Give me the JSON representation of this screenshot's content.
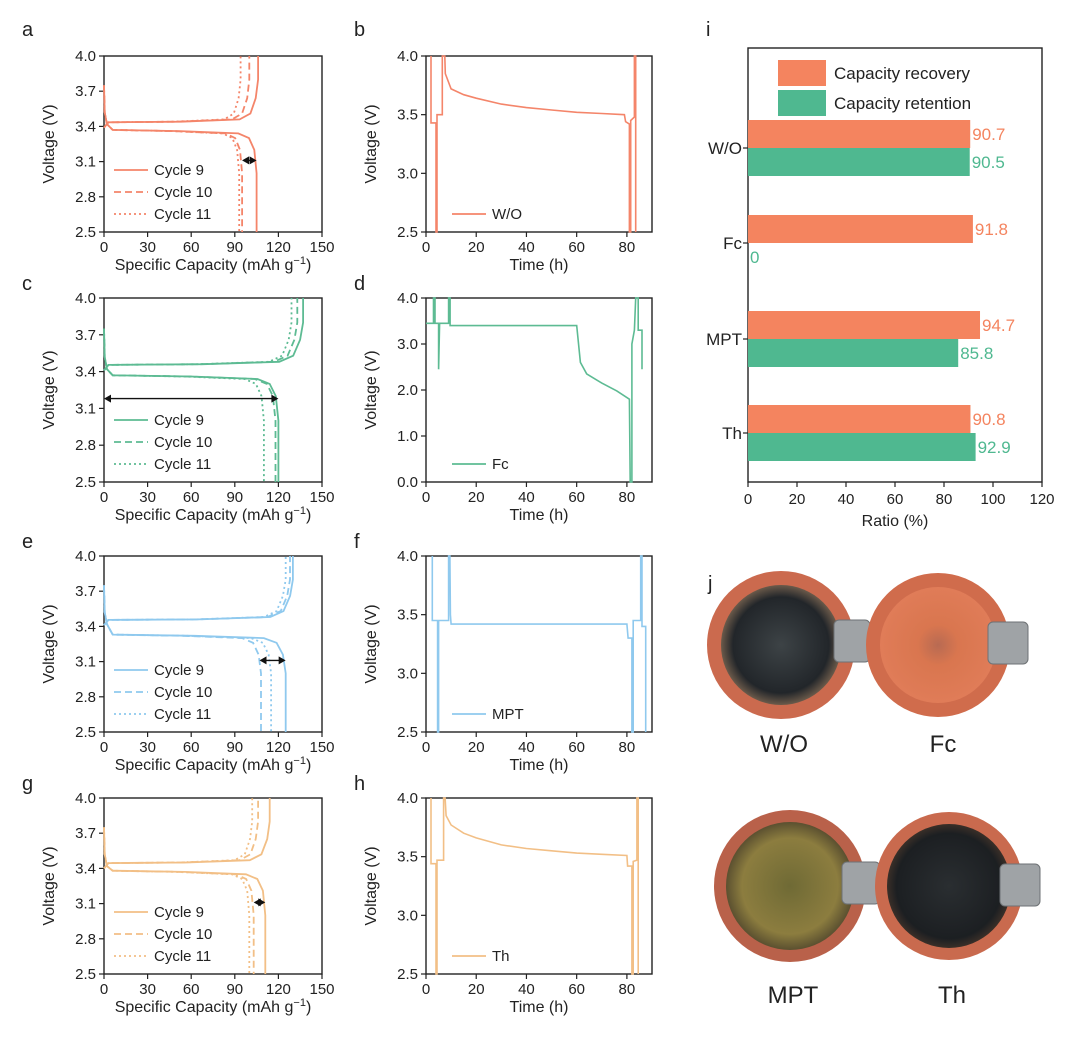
{
  "colors": {
    "WO": "#F4856A",
    "Fc": "#5DBB93",
    "MPT": "#8FC9EE",
    "Th": "#F2BF86",
    "recovery": "#F4845F",
    "retention": "#4FB890",
    "pellet_dark": "#26292c",
    "pellet_ring": "#c9664a",
    "pellet_fc": "#d9734f",
    "pellet_mpt": "#8a7a3c",
    "pellet_rim_bg": "#cc6b4e"
  },
  "panel_labels": {
    "a": "a",
    "b": "b",
    "c": "c",
    "d": "d",
    "e": "e",
    "f": "f",
    "g": "g",
    "h": "h",
    "i": "i",
    "j": "j"
  },
  "chart_data": [
    {
      "panel": "a",
      "type": "line",
      "xlabel": "Specific Capacity (mAh g",
      "xlabel_sup": "−1",
      "xlabel_end": ")",
      "ylabel": "Voltage (V)",
      "xlim": [
        0,
        150
      ],
      "ylim": [
        2.5,
        4.0
      ],
      "xticks": [
        0,
        30,
        60,
        90,
        120,
        150
      ],
      "yticks": [
        2.5,
        2.8,
        3.1,
        3.4,
        3.7,
        4.0
      ],
      "color": "#F4856A",
      "legend": [
        "Cycle 9",
        "Cycle 10",
        "Cycle 11"
      ],
      "series": [
        {
          "name": "Cycle 9",
          "style": "solid",
          "charge_plateau": 3.44,
          "discharge_plateau": 3.36,
          "charge_cap": 106,
          "discharge_cap": 105
        },
        {
          "name": "Cycle 10",
          "style": "dash",
          "charge_plateau": 3.44,
          "discharge_plateau": 3.36,
          "charge_cap": 100,
          "discharge_cap": 95
        },
        {
          "name": "Cycle 11",
          "style": "dot",
          "charge_plateau": 3.44,
          "discharge_plateau": 3.36,
          "charge_cap": 94,
          "discharge_cap": 93
        }
      ],
      "arrow": {
        "x1": 95,
        "x2": 105,
        "y": 3.11
      }
    },
    {
      "panel": "b",
      "type": "line",
      "xlabel": "Time (h)",
      "ylabel": "Voltage (V)",
      "xlim": [
        0,
        90
      ],
      "ylim": [
        2.5,
        4.0
      ],
      "xticks": [
        0,
        20,
        40,
        60,
        80
      ],
      "yticks": [
        2.5,
        3.0,
        3.5,
        4.0
      ],
      "color": "#F4856A",
      "legend": [
        "W/O"
      ],
      "points": [
        [
          2,
          4.0
        ],
        [
          2,
          3.43
        ],
        [
          4,
          3.43
        ],
        [
          4,
          2.5
        ],
        [
          4.4,
          2.5
        ],
        [
          4.4,
          3.5
        ],
        [
          6.5,
          3.5
        ],
        [
          6.5,
          4.0
        ],
        [
          7.5,
          4.0
        ],
        [
          7.7,
          3.85
        ],
        [
          10,
          3.72
        ],
        [
          15,
          3.67
        ],
        [
          20,
          3.64
        ],
        [
          30,
          3.59
        ],
        [
          40,
          3.56
        ],
        [
          50,
          3.54
        ],
        [
          60,
          3.52
        ],
        [
          70,
          3.51
        ],
        [
          79,
          3.5
        ],
        [
          79.5,
          3.44
        ],
        [
          81,
          3.42
        ],
        [
          81,
          2.5
        ],
        [
          81.5,
          2.5
        ],
        [
          81.5,
          3.45
        ],
        [
          83,
          3.48
        ],
        [
          83,
          4.0
        ],
        [
          83.5,
          4.0
        ],
        [
          83.5,
          2.5
        ]
      ]
    },
    {
      "panel": "c",
      "type": "line",
      "xlabel": "Specific Capacity (mAh g",
      "xlabel_sup": "−1",
      "xlabel_end": ")",
      "ylabel": "Voltage (V)",
      "xlim": [
        0,
        150
      ],
      "ylim": [
        2.5,
        4.0
      ],
      "xticks": [
        0,
        30,
        60,
        90,
        120,
        150
      ],
      "yticks": [
        2.5,
        2.8,
        3.1,
        3.4,
        3.7,
        4.0
      ],
      "color": "#5DBB93",
      "legend": [
        "Cycle 9",
        "Cycle 10",
        "Cycle 11"
      ],
      "series": [
        {
          "name": "Cycle 9",
          "style": "solid",
          "charge_plateau": 3.46,
          "discharge_plateau": 3.36,
          "charge_cap": 137,
          "discharge_cap": 120
        },
        {
          "name": "Cycle 10",
          "style": "dash",
          "charge_plateau": 3.46,
          "discharge_plateau": 3.36,
          "charge_cap": 133,
          "discharge_cap": 118
        },
        {
          "name": "Cycle 11",
          "style": "dot",
          "charge_plateau": 3.46,
          "discharge_plateau": 3.36,
          "charge_cap": 129,
          "discharge_cap": 110
        }
      ],
      "arrow": {
        "x1": 0,
        "x2": 120,
        "y": 3.18
      }
    },
    {
      "panel": "d",
      "type": "line",
      "xlabel": "Time (h)",
      "ylabel": "Voltage (V)",
      "xlim": [
        0,
        90
      ],
      "ylim": [
        0.0,
        4.0
      ],
      "xticks": [
        0,
        20,
        40,
        60,
        80
      ],
      "yticks": [
        0.0,
        1.0,
        2.0,
        3.0,
        4.0
      ],
      "color": "#5DBB93",
      "legend": [
        "Fc"
      ],
      "points": [
        [
          0,
          3.45
        ],
        [
          3,
          3.45
        ],
        [
          3,
          4.0
        ],
        [
          3.6,
          4.0
        ],
        [
          3.6,
          3.45
        ],
        [
          5,
          3.45
        ],
        [
          5,
          2.45
        ],
        [
          5.4,
          3.45
        ],
        [
          9,
          3.45
        ],
        [
          9,
          4.0
        ],
        [
          9.6,
          4.0
        ],
        [
          9.6,
          3.4
        ],
        [
          20,
          3.4
        ],
        [
          40,
          3.4
        ],
        [
          60,
          3.4
        ],
        [
          61.5,
          2.6
        ],
        [
          64,
          2.35
        ],
        [
          70,
          2.15
        ],
        [
          76,
          1.98
        ],
        [
          81,
          1.8
        ],
        [
          81.3,
          0.0
        ],
        [
          82,
          0.0
        ],
        [
          82,
          3.0
        ],
        [
          83,
          3.3
        ],
        [
          83.5,
          4.0
        ],
        [
          84.5,
          4.0
        ],
        [
          84.5,
          3.3
        ],
        [
          86,
          3.3
        ],
        [
          86,
          2.45
        ]
      ]
    },
    {
      "panel": "e",
      "type": "line",
      "xlabel": "Specific Capacity (mAh g",
      "xlabel_sup": "−1",
      "xlabel_end": ")",
      "ylabel": "Voltage (V)",
      "xlim": [
        0,
        150
      ],
      "ylim": [
        2.5,
        4.0
      ],
      "xticks": [
        0,
        30,
        60,
        90,
        120,
        150
      ],
      "yticks": [
        2.5,
        2.8,
        3.1,
        3.4,
        3.7,
        4.0
      ],
      "color": "#8FC9EE",
      "legend": [
        "Cycle 9",
        "Cycle 10",
        "Cycle 11"
      ],
      "series": [
        {
          "name": "Cycle 9",
          "style": "solid",
          "charge_plateau": 3.46,
          "discharge_plateau": 3.32,
          "charge_cap": 130,
          "discharge_cap": 125
        },
        {
          "name": "Cycle 10",
          "style": "dash",
          "charge_plateau": 3.46,
          "discharge_plateau": 3.32,
          "charge_cap": 128,
          "discharge_cap": 108
        },
        {
          "name": "Cycle 11",
          "style": "dot",
          "charge_plateau": 3.46,
          "discharge_plateau": 3.32,
          "charge_cap": 125,
          "discharge_cap": 115
        }
      ],
      "arrow": {
        "x1": 107,
        "x2": 125,
        "y": 3.11
      }
    },
    {
      "panel": "f",
      "type": "line",
      "xlabel": "Time (h)",
      "ylabel": "Voltage (V)",
      "xlim": [
        0,
        90
      ],
      "ylim": [
        2.5,
        4.0
      ],
      "xticks": [
        0,
        20,
        40,
        60,
        80
      ],
      "yticks": [
        2.5,
        3.0,
        3.5,
        4.0
      ],
      "color": "#8FC9EE",
      "legend": [
        "MPT"
      ],
      "points": [
        [
          2.5,
          4.0
        ],
        [
          2.5,
          3.45
        ],
        [
          4.6,
          3.45
        ],
        [
          4.6,
          2.5
        ],
        [
          5,
          2.5
        ],
        [
          5,
          3.45
        ],
        [
          9,
          3.45
        ],
        [
          9,
          4.0
        ],
        [
          9.5,
          4.0
        ],
        [
          9.7,
          3.5
        ],
        [
          10,
          3.42
        ],
        [
          20,
          3.42
        ],
        [
          40,
          3.42
        ],
        [
          60,
          3.42
        ],
        [
          80,
          3.42
        ],
        [
          80.5,
          3.3
        ],
        [
          82,
          3.3
        ],
        [
          82,
          2.5
        ],
        [
          82.5,
          2.5
        ],
        [
          82.5,
          3.45
        ],
        [
          85.5,
          3.45
        ],
        [
          85.5,
          4.0
        ],
        [
          86,
          4.0
        ],
        [
          86,
          3.4
        ],
        [
          87.5,
          3.4
        ],
        [
          87.5,
          2.5
        ]
      ]
    },
    {
      "panel": "g",
      "type": "line",
      "xlabel": "Specific Capacity (mAh g",
      "xlabel_sup": "−1",
      "xlabel_end": ")",
      "ylabel": "Voltage (V)",
      "xlim": [
        0,
        150
      ],
      "ylim": [
        2.5,
        4.0
      ],
      "xticks": [
        0,
        30,
        60,
        90,
        120,
        150
      ],
      "yticks": [
        2.5,
        2.8,
        3.1,
        3.4,
        3.7,
        4.0
      ],
      "color": "#F2BF86",
      "legend": [
        "Cycle 9",
        "Cycle 10",
        "Cycle 11"
      ],
      "series": [
        {
          "name": "Cycle 9",
          "style": "solid",
          "charge_plateau": 3.45,
          "discharge_plateau": 3.37,
          "charge_cap": 114,
          "discharge_cap": 111
        },
        {
          "name": "Cycle 10",
          "style": "dash",
          "charge_plateau": 3.45,
          "discharge_plateau": 3.37,
          "charge_cap": 106,
          "discharge_cap": 103
        },
        {
          "name": "Cycle 11",
          "style": "dot",
          "charge_plateau": 3.45,
          "discharge_plateau": 3.37,
          "charge_cap": 102,
          "discharge_cap": 100
        }
      ],
      "arrow": {
        "x1": 103,
        "x2": 111,
        "y": 3.11
      }
    },
    {
      "panel": "h",
      "type": "line",
      "xlabel": "Time (h)",
      "ylabel": "Voltage (V)",
      "xlim": [
        0,
        90
      ],
      "ylim": [
        2.5,
        4.0
      ],
      "xticks": [
        0,
        20,
        40,
        60,
        80
      ],
      "yticks": [
        2.5,
        3.0,
        3.5,
        4.0
      ],
      "color": "#F2BF86",
      "legend": [
        "Th"
      ],
      "points": [
        [
          2,
          4.0
        ],
        [
          2,
          3.44
        ],
        [
          4,
          3.44
        ],
        [
          4,
          2.5
        ],
        [
          4.4,
          2.5
        ],
        [
          4.4,
          3.47
        ],
        [
          7,
          3.47
        ],
        [
          7,
          4.0
        ],
        [
          7.6,
          4.0
        ],
        [
          8,
          3.85
        ],
        [
          10,
          3.77
        ],
        [
          15,
          3.7
        ],
        [
          20,
          3.66
        ],
        [
          30,
          3.6
        ],
        [
          40,
          3.57
        ],
        [
          50,
          3.55
        ],
        [
          60,
          3.53
        ],
        [
          70,
          3.52
        ],
        [
          80,
          3.51
        ],
        [
          80.3,
          3.42
        ],
        [
          82,
          3.42
        ],
        [
          82,
          2.5
        ],
        [
          82.5,
          2.5
        ],
        [
          82.5,
          3.46
        ],
        [
          84,
          3.47
        ],
        [
          84,
          4.0
        ],
        [
          84.5,
          4.0
        ],
        [
          84.5,
          2.5
        ]
      ]
    },
    {
      "panel": "i",
      "type": "bar",
      "orientation": "horizontal",
      "xlabel": "Ratio (%)",
      "xlim": [
        0,
        120
      ],
      "xticks": [
        0,
        20,
        40,
        60,
        80,
        100,
        120
      ],
      "categories": [
        "W/O",
        "Fc",
        "MPT",
        "Th"
      ],
      "series": [
        {
          "name": "Capacity recovery",
          "color": "#F4845F",
          "values": [
            90.7,
            91.8,
            94.7,
            90.8
          ]
        },
        {
          "name": "Capacity retention",
          "color": "#4FB890",
          "values": [
            90.5,
            0,
            85.8,
            92.9
          ]
        }
      ],
      "value_labels": {
        "recovery": [
          "90.7",
          "91.8",
          "94.7",
          "90.8"
        ],
        "retention": [
          "90.5",
          "0",
          "85.8",
          "92.9"
        ]
      },
      "legend_position": "top"
    }
  ],
  "photos": {
    "labels": [
      "W/O",
      "Fc",
      "MPT",
      "Th"
    ]
  }
}
